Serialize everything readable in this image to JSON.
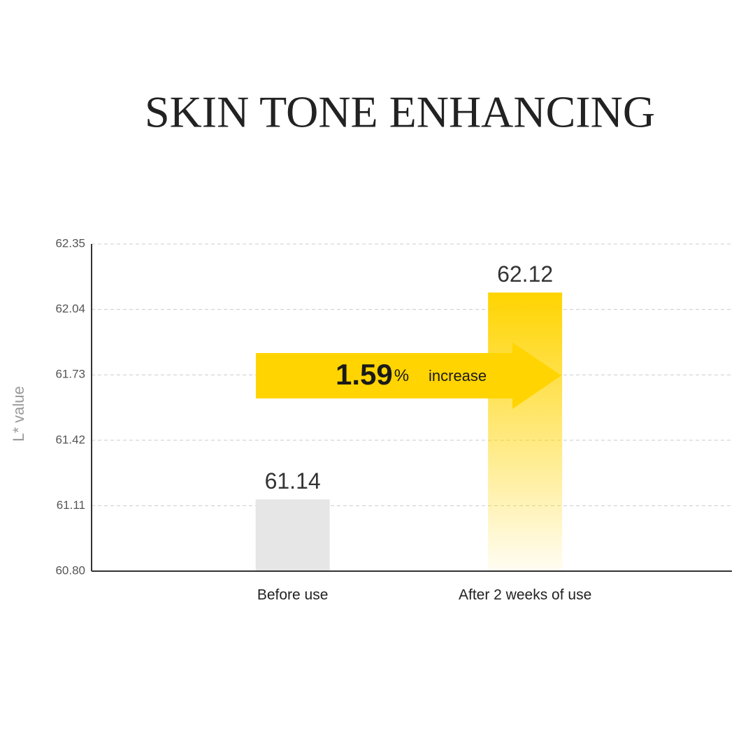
{
  "chart_data": {
    "type": "bar",
    "title": "SKIN TONE ENHANCING",
    "y_label": "L* value",
    "categories": [
      "Before use",
      "After 2 weeks of use"
    ],
    "values": [
      61.14,
      62.12
    ],
    "colors": [
      "#e6e6e6",
      "#ffd400"
    ],
    "fade": [
      false,
      true
    ],
    "ylim": [
      60.8,
      62.35
    ],
    "yticks": [
      {
        "value": 60.8,
        "label": "60.80"
      },
      61.11,
      61.42,
      61.73,
      62.04,
      62.35
    ],
    "grid": true,
    "annotation": {
      "number": "1.59",
      "unit": "%",
      "label": "increase",
      "color": "#ffd400"
    }
  }
}
